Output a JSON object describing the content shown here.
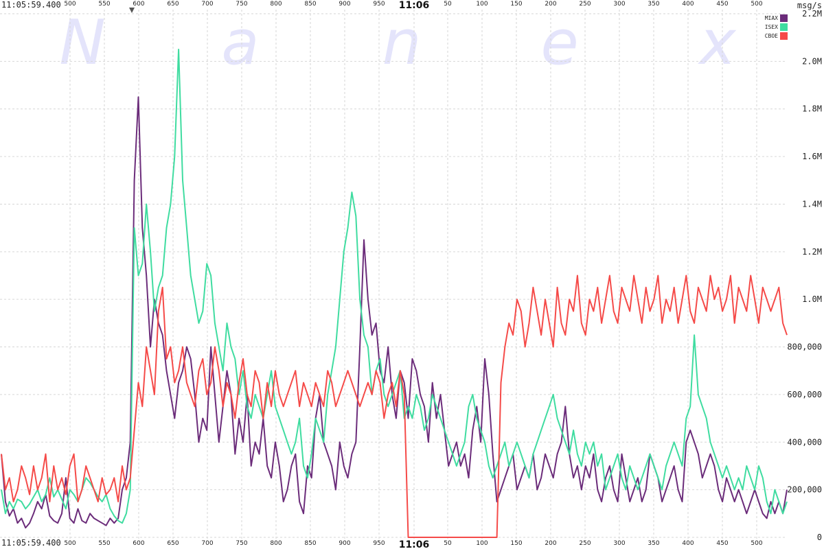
{
  "window": {
    "time_top_left": "11:05:59.400",
    "time_bottom_left": "11:05:59.400",
    "center_time_top": "11:06",
    "center_time_bottom": "11:06",
    "unit_label": "msg/s",
    "watermark": [
      "N",
      "a",
      "n",
      "e",
      "x"
    ]
  },
  "chart_data": {
    "type": "line",
    "xlabel": "",
    "ylabel": "msg/s",
    "ylim": [
      0,
      2200000
    ],
    "grid": true,
    "legend_position": "top-right",
    "x_ticks_top": [
      "500",
      "550",
      "600",
      "650",
      "700",
      "750",
      "800",
      "850",
      "900",
      "950",
      "11:06",
      "50",
      "100",
      "150",
      "200",
      "250",
      "300",
      "350",
      "400",
      "450",
      "500"
    ],
    "x_ticks_bottom": [
      "500",
      "550",
      "600",
      "650",
      "700",
      "750",
      "800",
      "850",
      "900",
      "950",
      "11:06",
      "50",
      "100",
      "150",
      "200",
      "250",
      "300",
      "350",
      "400",
      "450",
      "500"
    ],
    "y_ticks": [
      {
        "value": 0,
        "label": "0"
      },
      {
        "value": 200000,
        "label": "200,000"
      },
      {
        "value": 400000,
        "label": "400,000"
      },
      {
        "value": 600000,
        "label": "600,000"
      },
      {
        "value": 800000,
        "label": "800,000"
      },
      {
        "value": 1000000,
        "label": "1.0M"
      },
      {
        "value": 1200000,
        "label": "1.2M"
      },
      {
        "value": 1400000,
        "label": "1.4M"
      },
      {
        "value": 1600000,
        "label": "1.6M"
      },
      {
        "value": 1800000,
        "label": "1.8M"
      },
      {
        "value": 2000000,
        "label": "2.0M"
      },
      {
        "value": 2200000,
        "label": "2.2M"
      }
    ],
    "series": [
      {
        "name": "MIAX",
        "color": "#6b2c7a",
        "values": [
          350000,
          150000,
          90000,
          120000,
          60000,
          80000,
          40000,
          60000,
          100000,
          150000,
          120000,
          180000,
          90000,
          70000,
          60000,
          100000,
          250000,
          80000,
          60000,
          120000,
          70000,
          60000,
          100000,
          80000,
          70000,
          60000,
          50000,
          80000,
          60000,
          80000,
          200000,
          250000,
          400000,
          1500000,
          1850000,
          1300000,
          1100000,
          800000,
          1000000,
          900000,
          850000,
          700000,
          600000,
          500000,
          650000,
          700000,
          800000,
          750000,
          600000,
          400000,
          500000,
          450000,
          800000,
          600000,
          400000,
          550000,
          700000,
          600000,
          350000,
          500000,
          400000,
          600000,
          300000,
          400000,
          350000,
          500000,
          300000,
          250000,
          400000,
          300000,
          150000,
          200000,
          300000,
          350000,
          150000,
          100000,
          300000,
          250000,
          500000,
          600000,
          400000,
          350000,
          300000,
          200000,
          400000,
          300000,
          250000,
          350000,
          400000,
          800000,
          1250000,
          1000000,
          850000,
          900000,
          700000,
          650000,
          800000,
          600000,
          500000,
          700000,
          650000,
          500000,
          750000,
          700000,
          600000,
          550000,
          400000,
          650000,
          500000,
          600000,
          450000,
          300000,
          350000,
          400000,
          300000,
          350000,
          250000,
          450000,
          550000,
          400000,
          750000,
          600000,
          350000,
          150000,
          200000,
          250000,
          300000,
          350000,
          200000,
          250000,
          300000,
          250000,
          350000,
          200000,
          250000,
          350000,
          300000,
          250000,
          350000,
          400000,
          550000,
          350000,
          250000,
          300000,
          200000,
          300000,
          250000,
          350000,
          200000,
          150000,
          250000,
          300000,
          200000,
          150000,
          350000,
          250000,
          150000,
          200000,
          250000,
          150000,
          200000,
          350000,
          300000,
          250000,
          150000,
          200000,
          250000,
          300000,
          200000,
          150000,
          400000,
          450000,
          400000,
          350000,
          250000,
          300000,
          350000,
          300000,
          200000,
          150000,
          250000,
          200000,
          150000,
          200000,
          150000,
          100000,
          150000,
          200000,
          150000,
          100000,
          80000,
          150000,
          100000,
          150000,
          100000,
          200000
        ]
      },
      {
        "name": "ISEX",
        "color": "#3fdca0",
        "values": [
          200000,
          100000,
          150000,
          120000,
          160000,
          150000,
          120000,
          140000,
          170000,
          200000,
          150000,
          180000,
          250000,
          170000,
          200000,
          160000,
          120000,
          200000,
          180000,
          150000,
          200000,
          250000,
          230000,
          200000,
          170000,
          150000,
          180000,
          120000,
          90000,
          70000,
          60000,
          100000,
          200000,
          1300000,
          1100000,
          1150000,
          1400000,
          1200000,
          950000,
          1050000,
          1100000,
          1300000,
          1400000,
          1600000,
          2050000,
          1500000,
          1300000,
          1100000,
          1000000,
          900000,
          950000,
          1150000,
          1100000,
          900000,
          800000,
          700000,
          900000,
          800000,
          750000,
          600000,
          700000,
          550000,
          500000,
          600000,
          550000,
          500000,
          600000,
          700000,
          550000,
          500000,
          450000,
          400000,
          350000,
          400000,
          500000,
          300000,
          250000,
          350000,
          500000,
          450000,
          400000,
          600000,
          700000,
          800000,
          1000000,
          1200000,
          1300000,
          1450000,
          1350000,
          1000000,
          850000,
          800000,
          600000,
          700000,
          750000,
          600000,
          550000,
          600000,
          650000,
          700000,
          500000,
          550000,
          500000,
          600000,
          550000,
          450000,
          500000,
          600000,
          550000,
          500000,
          450000,
          400000,
          350000,
          300000,
          350000,
          400000,
          550000,
          600000,
          500000,
          450000,
          400000,
          300000,
          250000,
          300000,
          350000,
          400000,
          300000,
          350000,
          400000,
          350000,
          300000,
          250000,
          350000,
          400000,
          450000,
          500000,
          550000,
          600000,
          500000,
          450000,
          400000,
          350000,
          450000,
          350000,
          300000,
          400000,
          350000,
          400000,
          300000,
          350000,
          200000,
          250000,
          300000,
          350000,
          250000,
          200000,
          300000,
          250000,
          200000,
          250000,
          300000,
          350000,
          300000,
          250000,
          200000,
          300000,
          350000,
          400000,
          350000,
          300000,
          500000,
          550000,
          850000,
          600000,
          550000,
          500000,
          400000,
          350000,
          300000,
          250000,
          300000,
          250000,
          200000,
          250000,
          200000,
          300000,
          250000,
          200000,
          300000,
          250000,
          150000,
          100000,
          200000,
          150000,
          100000,
          150000
        ]
      },
      {
        "name": "CBOE",
        "color": "#f54a48",
        "values": [
          350000,
          200000,
          250000,
          150000,
          200000,
          300000,
          250000,
          180000,
          300000,
          200000,
          250000,
          350000,
          150000,
          300000,
          200000,
          250000,
          180000,
          300000,
          350000,
          150000,
          200000,
          300000,
          250000,
          200000,
          150000,
          250000,
          180000,
          200000,
          250000,
          150000,
          300000,
          200000,
          250000,
          450000,
          650000,
          550000,
          800000,
          700000,
          600000,
          950000,
          1050000,
          750000,
          800000,
          650000,
          700000,
          800000,
          650000,
          600000,
          550000,
          700000,
          750000,
          600000,
          650000,
          800000,
          700000,
          550000,
          650000,
          600000,
          500000,
          650000,
          750000,
          600000,
          550000,
          700000,
          650000,
          500000,
          650000,
          550000,
          700000,
          600000,
          550000,
          600000,
          650000,
          700000,
          550000,
          650000,
          600000,
          550000,
          650000,
          600000,
          550000,
          700000,
          650000,
          550000,
          600000,
          650000,
          700000,
          650000,
          600000,
          550000,
          600000,
          650000,
          600000,
          700000,
          650000,
          500000,
          600000,
          650000,
          550000,
          700000,
          600000,
          0,
          0,
          0,
          0,
          0,
          0,
          0,
          0,
          0,
          0,
          0,
          0,
          0,
          0,
          0,
          0,
          0,
          0,
          0,
          0,
          0,
          0,
          0,
          650000,
          800000,
          900000,
          850000,
          1000000,
          950000,
          800000,
          900000,
          1050000,
          950000,
          850000,
          1000000,
          900000,
          800000,
          1050000,
          900000,
          850000,
          1000000,
          950000,
          1100000,
          900000,
          850000,
          1000000,
          950000,
          1050000,
          900000,
          1000000,
          1100000,
          950000,
          900000,
          1050000,
          1000000,
          950000,
          1100000,
          1000000,
          900000,
          1050000,
          950000,
          1000000,
          1100000,
          900000,
          1000000,
          950000,
          1050000,
          900000,
          1000000,
          1100000,
          950000,
          900000,
          1050000,
          1000000,
          950000,
          1100000,
          1000000,
          1050000,
          950000,
          1000000,
          1100000,
          900000,
          1050000,
          1000000,
          950000,
          1100000,
          1000000,
          900000,
          1050000,
          1000000,
          950000,
          1000000,
          1050000,
          900000,
          850000
        ]
      }
    ]
  }
}
